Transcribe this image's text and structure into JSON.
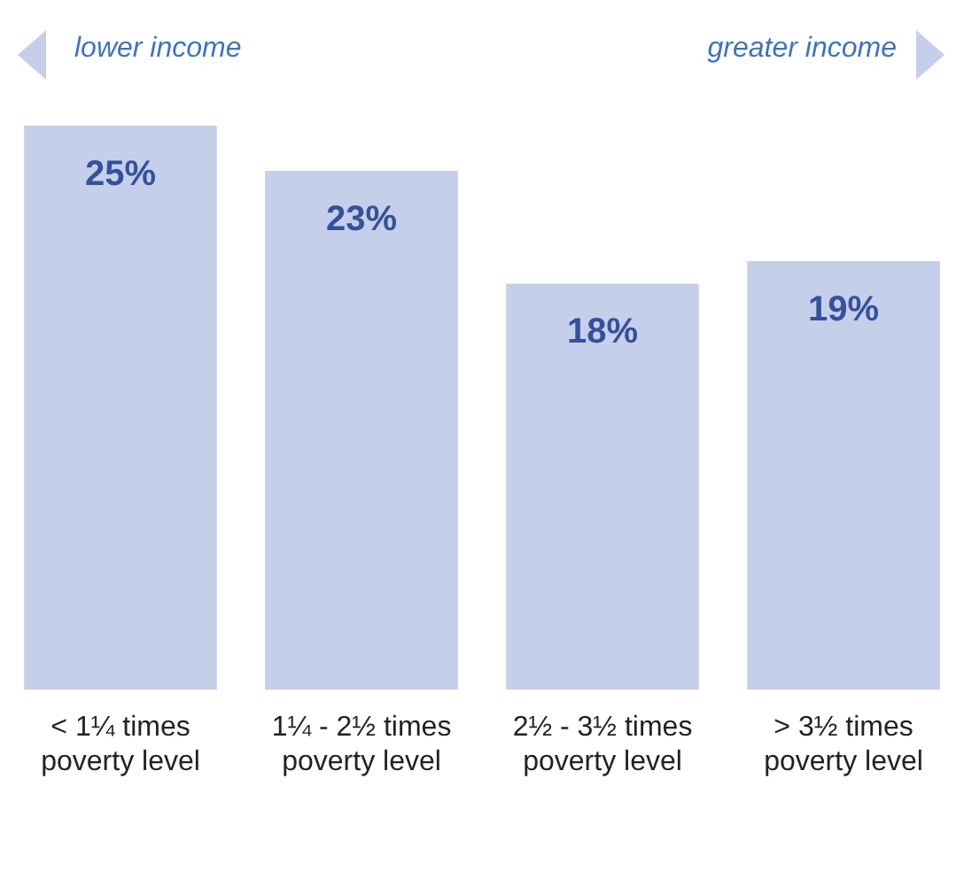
{
  "chart_data": {
    "type": "bar",
    "categories": [
      "< 1¼ times\npoverty level",
      "1¼ - 2½ times\npoverty level",
      "2½ - 3½ times\npoverty level",
      "> 3½ times\npoverty level"
    ],
    "values": [
      25,
      23,
      18,
      19
    ],
    "value_labels": [
      "25%",
      "23%",
      "18%",
      "19%"
    ],
    "color": "#c5cfea",
    "grid": false,
    "legend": false,
    "annotations": [
      "lower income",
      "greater income"
    ]
  }
}
